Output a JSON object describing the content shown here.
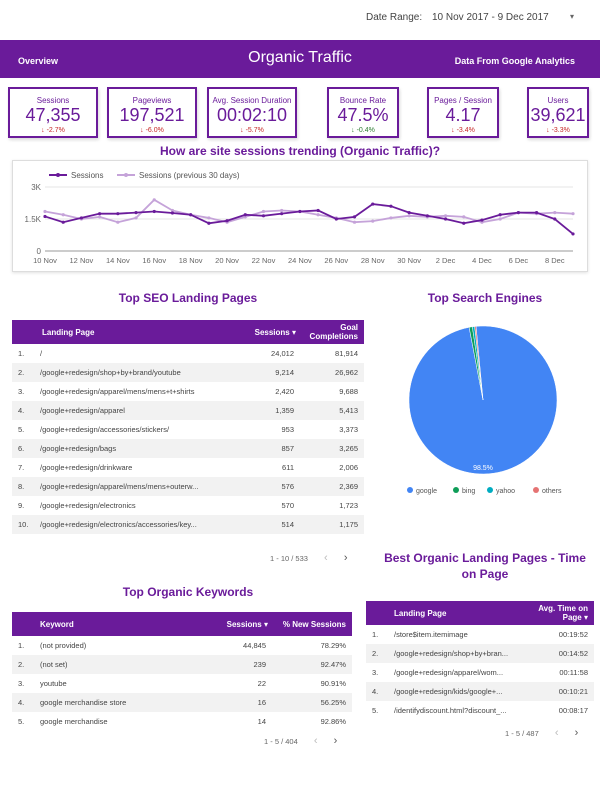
{
  "date_range": {
    "label": "Date Range:",
    "value": "10 Nov 2017 - 9 Dec 2017"
  },
  "header": {
    "overview": "Overview",
    "title": "Organic Traffic",
    "source": "Data From Google Analytics"
  },
  "kpis": [
    {
      "label": "Sessions",
      "value": "47,355",
      "delta": "-2.7%"
    },
    {
      "label": "Pageviews",
      "value": "197,521",
      "delta": "-6.0%"
    },
    {
      "label": "Avg. Session Duration",
      "value": "00:02:10",
      "delta": "-5.7%"
    },
    {
      "label": "Bounce Rate",
      "value": "47.5%",
      "delta": "-0.4%"
    },
    {
      "label": "Pages / Session",
      "value": "4.17",
      "delta": "-3.4%"
    },
    {
      "label": "Users",
      "value": "39,621",
      "delta": "-3.3%"
    }
  ],
  "colors": {
    "primary": "#6a1b9a",
    "negative": "#c62828",
    "positive": "#2e7d32"
  },
  "chart_data": [
    {
      "type": "line",
      "title": "How are site sessions trending (Organic Traffic)?",
      "x": [
        "10 Nov",
        "11 Nov",
        "12 Nov",
        "13 Nov",
        "14 Nov",
        "15 Nov",
        "16 Nov",
        "17 Nov",
        "18 Nov",
        "19 Nov",
        "20 Nov",
        "21 Nov",
        "22 Nov",
        "23 Nov",
        "24 Nov",
        "25 Nov",
        "26 Nov",
        "27 Nov",
        "28 Nov",
        "29 Nov",
        "30 Nov",
        "1 Dec",
        "2 Dec",
        "3 Dec",
        "4 Dec",
        "5 Dec",
        "6 Dec",
        "7 Dec",
        "8 Dec",
        "9 Dec"
      ],
      "x_tick_labels": [
        "10 Nov",
        "12 Nov",
        "14 Nov",
        "16 Nov",
        "18 Nov",
        "20 Nov",
        "22 Nov",
        "24 Nov",
        "26 Nov",
        "28 Nov",
        "30 Nov",
        "2 Dec",
        "4 Dec",
        "6 Dec",
        "8 Dec"
      ],
      "y_tick_labels": [
        "3K",
        "1.5K",
        "0"
      ],
      "ylim": [
        0,
        3000
      ],
      "series": [
        {
          "name": "Sessions",
          "color": "#6a1b9a",
          "values": [
            1620,
            1350,
            1550,
            1750,
            1750,
            1800,
            1850,
            1780,
            1700,
            1300,
            1420,
            1700,
            1650,
            1750,
            1850,
            1900,
            1500,
            1600,
            2200,
            2100,
            1800,
            1650,
            1500,
            1300,
            1450,
            1700,
            1800,
            1800,
            1500,
            800
          ]
        },
        {
          "name": "Sessions (previous 30 days)",
          "color": "#c5a3d9",
          "values": [
            1850,
            1700,
            1500,
            1600,
            1350,
            1550,
            2400,
            1900,
            1700,
            1550,
            1350,
            1600,
            1850,
            1900,
            1850,
            1700,
            1550,
            1350,
            1400,
            1550,
            1650,
            1600,
            1650,
            1600,
            1350,
            1500,
            1800,
            1750,
            1800,
            1750
          ]
        }
      ],
      "legend": "top-left",
      "grid": true
    },
    {
      "type": "pie",
      "title": "Top Search Engines",
      "slices": [
        {
          "label": "google",
          "value": 98.5,
          "color": "#4285f4"
        },
        {
          "label": "bing",
          "value": 0.7,
          "color": "#0f9d58"
        },
        {
          "label": "yahoo",
          "value": 0.5,
          "color": "#00acc1"
        },
        {
          "label": "others",
          "value": 0.3,
          "color": "#e57373"
        }
      ],
      "data_label": "98.5%",
      "legend": "bottom"
    }
  ],
  "landing": {
    "title": "Top SEO Landing Pages",
    "headers": {
      "page": "Landing Page",
      "sessions": "Sessions",
      "goals": "Goal Completions"
    },
    "rows": [
      [
        "1.",
        "/",
        "24,012",
        "81,914"
      ],
      [
        "2.",
        "/google+redesign/shop+by+brand/youtube",
        "9,214",
        "26,962"
      ],
      [
        "3.",
        "/google+redesign/apparel/mens/mens+t+shirts",
        "2,420",
        "9,688"
      ],
      [
        "4.",
        "/google+redesign/apparel",
        "1,359",
        "5,413"
      ],
      [
        "5.",
        "/google+redesign/accessories/stickers/",
        "953",
        "3,373"
      ],
      [
        "6.",
        "/google+redesign/bags",
        "857",
        "3,265"
      ],
      [
        "7.",
        "/google+redesign/drinkware",
        "611",
        "2,006"
      ],
      [
        "8.",
        "/google+redesign/apparel/mens/mens+outerw...",
        "576",
        "2,369"
      ],
      [
        "9.",
        "/google+redesign/electronics",
        "570",
        "1,723"
      ],
      [
        "10.",
        "/google+redesign/electronics/accessories/key...",
        "514",
        "1,175"
      ]
    ],
    "pager": "1 - 10 / 533"
  },
  "keywords": {
    "title": "Top Organic Keywords",
    "headers": {
      "keyword": "Keyword",
      "sessions": "Sessions",
      "new": "% New Sessions"
    },
    "rows": [
      [
        "1.",
        "(not provided)",
        "44,845",
        "78.29%"
      ],
      [
        "2.",
        "(not set)",
        "239",
        "92.47%"
      ],
      [
        "3.",
        "youtube",
        "22",
        "90.91%"
      ],
      [
        "4.",
        "google merchandise store",
        "16",
        "56.25%"
      ],
      [
        "5.",
        "google merchandise",
        "14",
        "92.86%"
      ]
    ],
    "pager": "1 - 5 / 404"
  },
  "time_on_page": {
    "title": "Best Organic Landing Pages - Time on Page",
    "headers": {
      "page": "Landing Page",
      "avg": "Avg. Time on Page"
    },
    "rows": [
      [
        "1.",
        "/store$item.itemimage",
        "00:19:52"
      ],
      [
        "2.",
        "/google+redesign/shop+by+bran...",
        "00:14:52"
      ],
      [
        "3.",
        "/google+redesign/apparel/wom...",
        "00:11:58"
      ],
      [
        "4.",
        "/google+redesign/kids/google+...",
        "00:10:21"
      ],
      [
        "5.",
        "/identifydiscount.html?discount_...",
        "00:08:17"
      ]
    ],
    "pager": "1 - 5 / 487"
  },
  "icons": {
    "sort": "arrow-down-icon",
    "prev": "chevron-left-icon",
    "next": "chevron-right-icon",
    "dropdown": "caret-down-icon"
  }
}
